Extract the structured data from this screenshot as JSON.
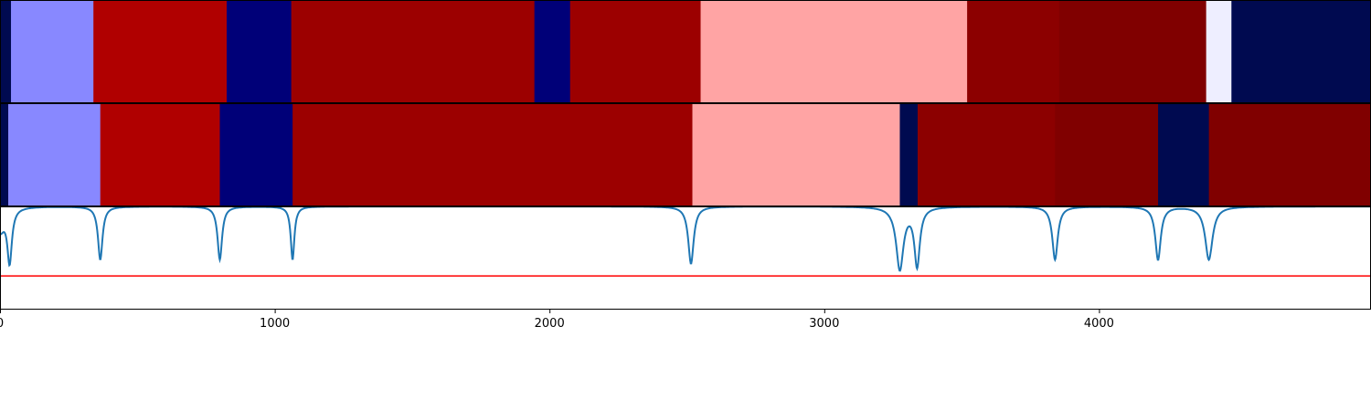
{
  "chart_data": [
    {
      "type": "heatmap",
      "xlim": [
        0,
        4990
      ],
      "segments": [
        {
          "start": 0,
          "end": 40,
          "color": "#000a50"
        },
        {
          "start": 40,
          "end": 340,
          "color": "#8888ff"
        },
        {
          "start": 340,
          "end": 825,
          "color": "#b00000"
        },
        {
          "start": 825,
          "end": 1060,
          "color": "#000078"
        },
        {
          "start": 1060,
          "end": 1945,
          "color": "#9c0000"
        },
        {
          "start": 1945,
          "end": 2075,
          "color": "#000078"
        },
        {
          "start": 2075,
          "end": 2550,
          "color": "#9c0000"
        },
        {
          "start": 2550,
          "end": 3520,
          "color": "#ffa4a4"
        },
        {
          "start": 3520,
          "end": 3855,
          "color": "#8c0000"
        },
        {
          "start": 3855,
          "end": 4390,
          "color": "#800000"
        },
        {
          "start": 4390,
          "end": 4482,
          "color": "#eeeeff"
        },
        {
          "start": 4482,
          "end": 4990,
          "color": "#000a50"
        }
      ]
    },
    {
      "type": "heatmap",
      "xlim": [
        0,
        4990
      ],
      "segments": [
        {
          "start": 0,
          "end": 30,
          "color": "#000a50"
        },
        {
          "start": 30,
          "end": 365,
          "color": "#8888ff"
        },
        {
          "start": 365,
          "end": 800,
          "color": "#b00000"
        },
        {
          "start": 800,
          "end": 1065,
          "color": "#000078"
        },
        {
          "start": 1065,
          "end": 2520,
          "color": "#9c0000"
        },
        {
          "start": 2520,
          "end": 3275,
          "color": "#ffa4a4"
        },
        {
          "start": 3275,
          "end": 3340,
          "color": "#000a50"
        },
        {
          "start": 3340,
          "end": 3840,
          "color": "#8c0000"
        },
        {
          "start": 3840,
          "end": 4215,
          "color": "#800000"
        },
        {
          "start": 4215,
          "end": 4400,
          "color": "#000a50"
        },
        {
          "start": 4400,
          "end": 4990,
          "color": "#800000"
        }
      ]
    },
    {
      "type": "line",
      "xlim": [
        0,
        4990
      ],
      "ylim": [
        0,
        1
      ],
      "xticks": [
        0,
        1000,
        2000,
        3000,
        4000
      ],
      "xtick_labels": [
        "0",
        "1000",
        "2000",
        "3000",
        "4000"
      ],
      "baseline": 1.0,
      "threshold": 0.32,
      "dips": [
        {
          "x": 0,
          "depth": 0.23,
          "width": 20
        },
        {
          "x": 35,
          "depth": 0.52,
          "width": 10
        },
        {
          "x": 365,
          "depth": 0.52,
          "width": 10
        },
        {
          "x": 800,
          "depth": 0.52,
          "width": 10
        },
        {
          "x": 1065,
          "depth": 0.52,
          "width": 8
        },
        {
          "x": 2515,
          "depth": 0.56,
          "width": 12
        },
        {
          "x": 3275,
          "depth": 0.61,
          "width": 16
        },
        {
          "x": 3338,
          "depth": 0.57,
          "width": 12
        },
        {
          "x": 3840,
          "depth": 0.52,
          "width": 12
        },
        {
          "x": 4215,
          "depth": 0.52,
          "width": 12
        },
        {
          "x": 4400,
          "depth": 0.52,
          "width": 16
        }
      ],
      "colors": {
        "line": "#1f77b4",
        "threshold": "#ff0000"
      }
    }
  ]
}
